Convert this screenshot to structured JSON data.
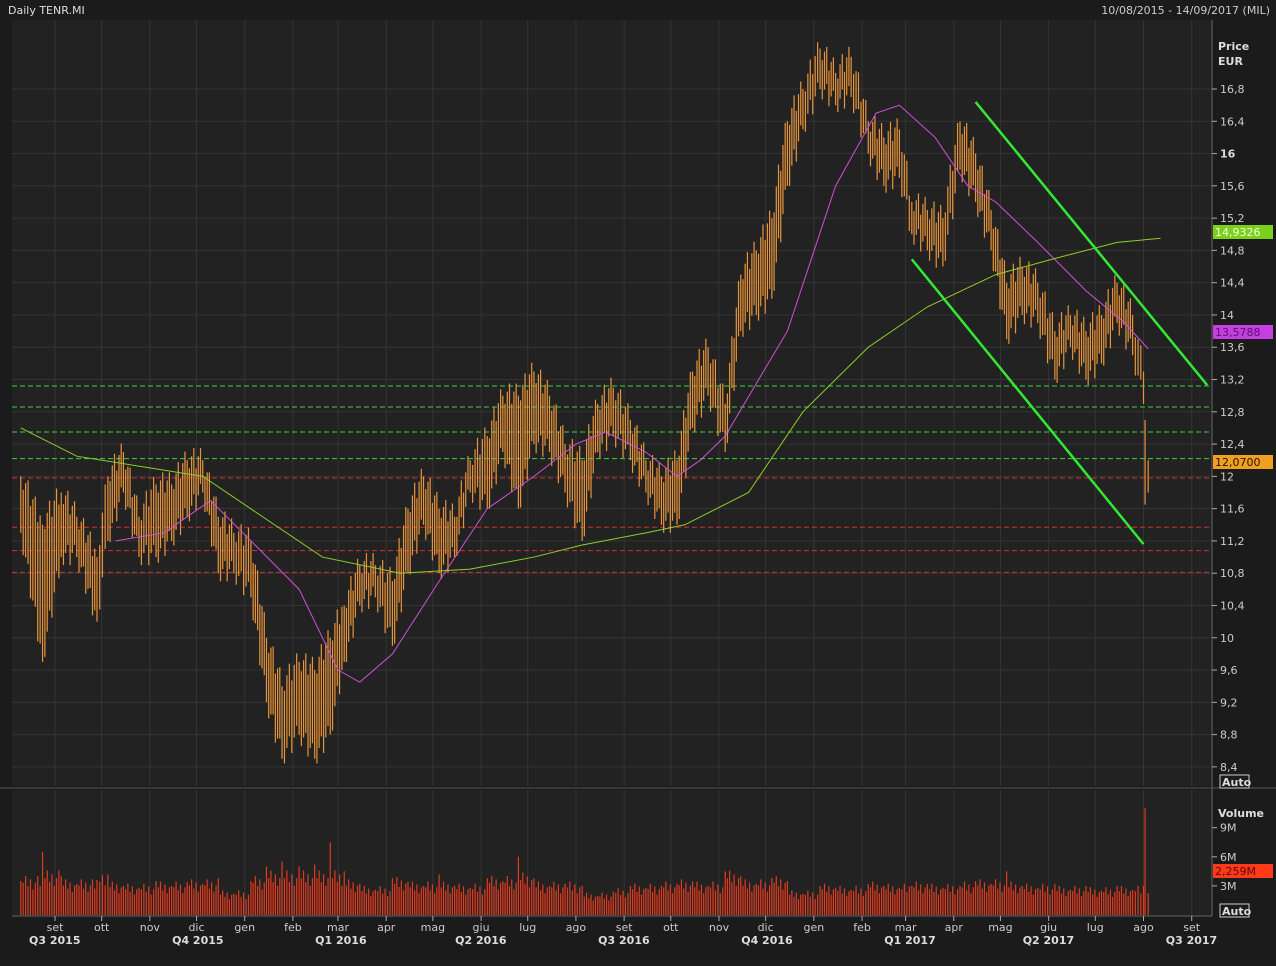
{
  "header": {
    "title": "Daily TENR.MI",
    "range": "10/08/2015 - 14/09/2017 (MIL)"
  },
  "price_axis": {
    "label1": "Price",
    "label2": "EUR",
    "auto": "Auto"
  },
  "volume_axis": {
    "label": "Volume",
    "auto": "Auto"
  },
  "chart_data": [
    {
      "type": "bar",
      "title": "Daily TENR.MI",
      "ylabel": "Price EUR",
      "ylim": [
        8.2,
        17.4
      ],
      "yticks": [
        "16,8",
        "16,4",
        "16",
        "15,6",
        "15,2",
        "14,8",
        "14,4",
        "14",
        "13,6",
        "13,2",
        "12,8",
        "12,4",
        "12",
        "11,6",
        "11,2",
        "10,8",
        "10,4",
        "10",
        "9,6",
        "9,2",
        "8,8",
        "8,4"
      ],
      "ytick_values": [
        16.8,
        16.4,
        16,
        15.6,
        15.2,
        14.8,
        14.4,
        14,
        13.6,
        13.2,
        12.8,
        12.4,
        12,
        11.6,
        11.2,
        10.8,
        10.4,
        10,
        9.6,
        9.2,
        8.8,
        8.4
      ],
      "months": [
        [
          "2015-09-01",
          "set"
        ],
        [
          "2015-10-01",
          "ott"
        ],
        [
          "2015-11-01",
          "nov"
        ],
        [
          "2015-12-01",
          "dic"
        ],
        [
          "2016-01-01",
          "gen"
        ],
        [
          "2016-02-01",
          "feb"
        ],
        [
          "2016-03-01",
          "mar"
        ],
        [
          "2016-04-01",
          "apr"
        ],
        [
          "2016-05-01",
          "mag"
        ],
        [
          "2016-06-01",
          "giu"
        ],
        [
          "2016-07-01",
          "lug"
        ],
        [
          "2016-08-01",
          "ago"
        ],
        [
          "2016-09-01",
          "set"
        ],
        [
          "2016-10-01",
          "ott"
        ],
        [
          "2016-11-01",
          "nov"
        ],
        [
          "2016-12-01",
          "dic"
        ],
        [
          "2017-01-01",
          "gen"
        ],
        [
          "2017-02-01",
          "feb"
        ],
        [
          "2017-03-01",
          "mar"
        ],
        [
          "2017-04-01",
          "apr"
        ],
        [
          "2017-05-01",
          "mag"
        ],
        [
          "2017-06-01",
          "giu"
        ],
        [
          "2017-07-01",
          "lug"
        ],
        [
          "2017-08-01",
          "ago"
        ],
        [
          "2017-09-01",
          "set"
        ]
      ],
      "quarters": [
        [
          "2015-08-01",
          "Q3 2015"
        ],
        [
          "2015-11-01",
          "Q4 2015"
        ],
        [
          "2016-02-01",
          "Q1 2016"
        ],
        [
          "2016-05-01",
          "Q2 2016"
        ],
        [
          "2016-08-01",
          "Q3 2016"
        ],
        [
          "2016-11-01",
          "Q4 2016"
        ],
        [
          "2017-02-01",
          "Q1 2017"
        ],
        [
          "2017-05-01",
          "Q2 2017"
        ],
        [
          "2017-08-01",
          "Q3 2017"
        ]
      ],
      "bars_columns": [
        "date",
        "low",
        "high",
        "volume_millions"
      ],
      "bars": [
        [
          "2015-08-10",
          11.3,
          12.0,
          3.5
        ],
        [
          "2015-08-24",
          9.7,
          11.4,
          6.5
        ],
        [
          "2015-09-05",
          11.0,
          11.8,
          4.0
        ],
        [
          "2015-09-15",
          11.0,
          11.5,
          3.2
        ],
        [
          "2015-09-28",
          10.2,
          11.0,
          3.6
        ],
        [
          "2015-10-05",
          11.2,
          12.0,
          4.2
        ],
        [
          "2015-10-15",
          11.8,
          12.3,
          3.0
        ],
        [
          "2015-10-25",
          11.0,
          11.5,
          2.8
        ],
        [
          "2015-11-05",
          11.0,
          11.9,
          3.5
        ],
        [
          "2015-11-15",
          11.2,
          11.9,
          3.0
        ],
        [
          "2015-11-25",
          11.5,
          12.2,
          3.4
        ],
        [
          "2015-12-05",
          11.8,
          12.2,
          3.2
        ],
        [
          "2015-12-15",
          10.8,
          11.5,
          3.8
        ],
        [
          "2015-12-25",
          10.8,
          11.3,
          2.2
        ],
        [
          "2016-01-05",
          10.5,
          11.2,
          3.5
        ],
        [
          "2016-01-15",
          9.2,
          10.0,
          5.0
        ],
        [
          "2016-01-25",
          8.5,
          9.4,
          5.5
        ],
        [
          "2016-02-05",
          8.8,
          9.7,
          5.0
        ],
        [
          "2016-02-15",
          8.5,
          9.6,
          5.2
        ],
        [
          "2016-02-25",
          8.8,
          10.0,
          7.5
        ],
        [
          "2016-03-05",
          9.7,
          10.4,
          4.5
        ],
        [
          "2016-03-15",
          10.4,
          10.9,
          3.2
        ],
        [
          "2016-03-25",
          10.5,
          10.9,
          2.6
        ],
        [
          "2016-04-05",
          9.9,
          10.7,
          3.8
        ],
        [
          "2016-04-15",
          10.8,
          11.6,
          3.4
        ],
        [
          "2016-04-25",
          11.4,
          12.0,
          3.0
        ],
        [
          "2016-05-05",
          10.8,
          11.6,
          4.2
        ],
        [
          "2016-05-15",
          11.0,
          11.5,
          3.0
        ],
        [
          "2016-05-25",
          11.8,
          12.2,
          2.8
        ],
        [
          "2016-06-05",
          11.6,
          12.5,
          3.8
        ],
        [
          "2016-06-15",
          12.3,
          13.0,
          3.5
        ],
        [
          "2016-06-25",
          11.6,
          13.0,
          6.0
        ],
        [
          "2016-07-05",
          12.4,
          13.3,
          3.8
        ],
        [
          "2016-07-15",
          12.3,
          13.0,
          3.0
        ],
        [
          "2016-07-25",
          11.8,
          12.4,
          3.2
        ],
        [
          "2016-08-05",
          11.2,
          12.2,
          3.0
        ],
        [
          "2016-08-15",
          12.3,
          12.9,
          2.0
        ],
        [
          "2016-08-25",
          12.5,
          13.1,
          2.4
        ],
        [
          "2016-09-05",
          12.2,
          12.7,
          3.0
        ],
        [
          "2016-09-15",
          11.8,
          12.2,
          2.8
        ],
        [
          "2016-09-25",
          11.4,
          12.0,
          3.0
        ],
        [
          "2016-10-05",
          11.4,
          12.2,
          3.2
        ],
        [
          "2016-10-15",
          12.6,
          13.3,
          3.5
        ],
        [
          "2016-10-25",
          13.0,
          13.6,
          3.0
        ],
        [
          "2016-11-05",
          12.3,
          12.9,
          4.5
        ],
        [
          "2016-11-15",
          13.8,
          14.5,
          4.0
        ],
        [
          "2016-11-25",
          14.0,
          14.8,
          3.2
        ],
        [
          "2016-12-05",
          14.2,
          15.2,
          3.8
        ],
        [
          "2016-12-15",
          15.6,
          16.4,
          3.5
        ],
        [
          "2016-12-25",
          16.3,
          16.8,
          2.2
        ],
        [
          "2017-01-05",
          16.8,
          17.3,
          3.0
        ],
        [
          "2017-01-15",
          16.6,
          17.0,
          2.8
        ],
        [
          "2017-01-25",
          16.7,
          17.2,
          2.6
        ],
        [
          "2017-02-05",
          16.0,
          16.4,
          3.2
        ],
        [
          "2017-02-15",
          15.6,
          16.2,
          3.0
        ],
        [
          "2017-02-25",
          15.7,
          16.3,
          2.8
        ],
        [
          "2017-03-05",
          15.0,
          15.4,
          3.0
        ],
        [
          "2017-03-15",
          14.8,
          15.3,
          3.2
        ],
        [
          "2017-03-25",
          14.6,
          15.2,
          2.8
        ],
        [
          "2017-04-05",
          15.8,
          16.4,
          3.0
        ],
        [
          "2017-04-15",
          15.4,
          16.0,
          3.5
        ],
        [
          "2017-04-25",
          14.8,
          15.3,
          3.2
        ],
        [
          "2017-05-05",
          13.7,
          14.4,
          4.5
        ],
        [
          "2017-05-15",
          14.0,
          14.6,
          3.0
        ],
        [
          "2017-05-25",
          13.9,
          14.4,
          2.8
        ],
        [
          "2017-06-05",
          13.2,
          13.8,
          3.2
        ],
        [
          "2017-06-15",
          13.6,
          14.0,
          2.6
        ],
        [
          "2017-06-25",
          13.2,
          13.8,
          3.0
        ],
        [
          "2017-07-05",
          13.4,
          14.0,
          2.5
        ],
        [
          "2017-07-15",
          13.9,
          14.4,
          3.0
        ],
        [
          "2017-07-25",
          13.5,
          14.0,
          2.6
        ],
        [
          "2017-08-01",
          12.9,
          13.3,
          3.0
        ],
        [
          "2017-08-02",
          11.65,
          12.7,
          11.0
        ],
        [
          "2017-08-04",
          11.8,
          12.2,
          2.259
        ]
      ],
      "moving_averages": [
        {
          "color": "#d24fd8",
          "last_value": "13,5788",
          "points": [
            [
              "2015-10-10",
              11.2
            ],
            [
              "2015-11-10",
              11.3
            ],
            [
              "2015-12-10",
              11.7
            ],
            [
              "2016-01-05",
              11.2
            ],
            [
              "2016-02-05",
              10.6
            ],
            [
              "2016-03-01",
              9.6
            ],
            [
              "2016-03-15",
              9.45
            ],
            [
              "2016-04-05",
              9.8
            ],
            [
              "2016-05-05",
              10.7
            ],
            [
              "2016-06-05",
              11.6
            ],
            [
              "2016-07-05",
              12.0
            ],
            [
              "2016-08-01",
              12.4
            ],
            [
              "2016-08-20",
              12.55
            ],
            [
              "2016-09-15",
              12.3
            ],
            [
              "2016-10-05",
              12.0
            ],
            [
              "2016-10-20",
              12.2
            ],
            [
              "2016-11-05",
              12.5
            ],
            [
              "2016-12-15",
              13.8
            ],
            [
              "2017-01-15",
              15.6
            ],
            [
              "2017-02-10",
              16.5
            ],
            [
              "2017-02-25",
              16.6
            ],
            [
              "2017-03-20",
              16.2
            ],
            [
              "2017-04-10",
              15.6
            ],
            [
              "2017-04-28",
              15.4
            ],
            [
              "2017-05-25",
              14.9
            ],
            [
              "2017-06-25",
              14.3
            ],
            [
              "2017-07-20",
              13.9
            ],
            [
              "2017-08-04",
              13.58
            ]
          ]
        },
        {
          "color": "#8ccf2a",
          "last_value": "14,9326",
          "points": [
            [
              "2015-08-10",
              12.6
            ],
            [
              "2015-09-15",
              12.25
            ],
            [
              "2015-12-05",
              12.0
            ],
            [
              "2016-02-20",
              11.0
            ],
            [
              "2016-04-10",
              10.8
            ],
            [
              "2016-05-25",
              10.85
            ],
            [
              "2016-07-05",
              11.0
            ],
            [
              "2016-08-05",
              11.15
            ],
            [
              "2016-09-15",
              11.3
            ],
            [
              "2016-10-10",
              11.4
            ],
            [
              "2016-11-20",
              11.8
            ],
            [
              "2016-12-25",
              12.8
            ],
            [
              "2017-02-05",
              13.6
            ],
            [
              "2017-03-15",
              14.1
            ],
            [
              "2017-04-28",
              14.5
            ],
            [
              "2017-06-05",
              14.7
            ],
            [
              "2017-07-15",
              14.9
            ],
            [
              "2017-08-12",
              14.95
            ]
          ]
        }
      ],
      "current_price": "12,0700",
      "current_volume": "2,259M",
      "levels": [
        {
          "price": 13.12,
          "color": "#3fd13f"
        },
        {
          "price": 12.86,
          "color": "#3fd13f"
        },
        {
          "price": 12.55,
          "color": "#3fd13f"
        },
        {
          "price": 12.22,
          "color": "#3fd13f"
        },
        {
          "price": 11.98,
          "color": "#d03030"
        },
        {
          "price": 11.37,
          "color": "#d03030"
        },
        {
          "price": 11.08,
          "color": "#d03030"
        },
        {
          "price": 10.81,
          "color": "#d03030"
        }
      ],
      "trendlines": [
        {
          "from": [
            "2017-04-15",
            16.64
          ],
          "to": [
            "2017-09-11",
            13.13
          ],
          "color": "#33e833"
        },
        {
          "from": [
            "2017-03-05",
            14.69
          ],
          "to": [
            "2017-08-01",
            11.16
          ],
          "color": "#33e833"
        }
      ],
      "volume_ticks": [
        [
          "9M",
          9
        ],
        [
          "6M",
          6
        ],
        [
          "3M",
          3
        ]
      ],
      "colors": {
        "bars": "#e8943a",
        "volume": "#e23a1e",
        "background": "#222222",
        "grid": "#343434"
      }
    }
  ]
}
